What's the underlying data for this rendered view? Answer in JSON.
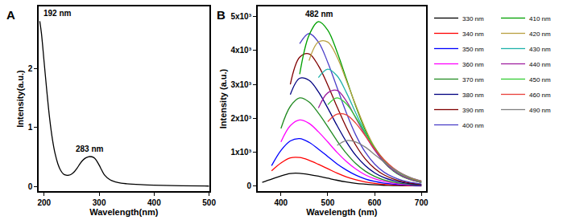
{
  "chart_data": [
    {
      "type": "line",
      "title": "A",
      "x_label": "Wavelength(nm)",
      "y_label": "Intensity(a.u.)",
      "x": [
        192,
        195,
        200,
        205,
        210,
        215,
        220,
        225,
        230,
        235,
        240,
        245,
        250,
        255,
        260,
        265,
        270,
        275,
        280,
        283,
        290,
        295,
        300,
        305,
        310,
        320,
        330,
        340,
        350,
        375,
        400,
        450,
        500
      ],
      "values": [
        2.8,
        2.6,
        2.1,
        1.6,
        1.15,
        0.8,
        0.55,
        0.38,
        0.27,
        0.21,
        0.19,
        0.19,
        0.21,
        0.25,
        0.31,
        0.38,
        0.44,
        0.48,
        0.5,
        0.505,
        0.49,
        0.44,
        0.36,
        0.27,
        0.19,
        0.11,
        0.075,
        0.055,
        0.045,
        0.03,
        0.02,
        0.01,
        0.005
      ],
      "color": "#000000",
      "xlim": [
        190,
        500
      ],
      "xticks": [
        200,
        300,
        400,
        500
      ],
      "ylim": [
        -0.08,
        3.05
      ],
      "yticks": [
        0,
        1,
        2
      ],
      "grid": false,
      "annotations": [
        {
          "text": "192 nm",
          "x": 192,
          "y": 2.8
        },
        {
          "text": "283 nm",
          "x": 283,
          "y": 0.5
        }
      ]
    },
    {
      "type": "line",
      "title": "B",
      "x_label": "Wavelength (nm)",
      "y_label": "Intensity (a.u.)",
      "x": [
        360,
        380,
        400,
        420,
        440,
        460,
        480,
        500,
        520,
        540,
        560,
        580,
        600,
        620,
        640,
        660,
        680,
        700
      ],
      "series": [
        {
          "name": "330 nm",
          "color": "#000000",
          "values": [
            110,
            200,
            300,
            370,
            375,
            340,
            290,
            230,
            170,
            120,
            80,
            55,
            35,
            22,
            14,
            9,
            6,
            4
          ]
        },
        {
          "name": "340 nm",
          "color": "#ff0000",
          "values": [
            null,
            450,
            680,
            830,
            840,
            760,
            640,
            510,
            380,
            270,
            185,
            120,
            80,
            50,
            32,
            20,
            13,
            8
          ]
        },
        {
          "name": "350 nm",
          "color": "#0000ff",
          "values": [
            null,
            600,
            1050,
            1330,
            1400,
            1290,
            1090,
            870,
            650,
            470,
            320,
            210,
            135,
            85,
            55,
            35,
            22,
            14
          ]
        },
        {
          "name": "360 nm",
          "color": "#ff00ff",
          "values": [
            null,
            null,
            1300,
            1780,
            1950,
            1850,
            1600,
            1300,
            990,
            720,
            500,
            330,
            215,
            135,
            85,
            55,
            35,
            22
          ]
        },
        {
          "name": "370 nm",
          "color": "#228b22",
          "values": [
            null,
            null,
            1700,
            2350,
            2600,
            2480,
            2150,
            1750,
            1330,
            960,
            660,
            440,
            285,
            180,
            115,
            72,
            45,
            28
          ]
        },
        {
          "name": "380 nm",
          "color": "#000080",
          "values": [
            null,
            null,
            null,
            2700,
            3180,
            3120,
            2780,
            2300,
            1780,
            1300,
            900,
            600,
            390,
            250,
            160,
            100,
            62,
            40
          ]
        },
        {
          "name": "390 nm",
          "color": "#800000",
          "values": [
            null,
            null,
            null,
            3000,
            3800,
            3900,
            3550,
            2980,
            2330,
            1720,
            1200,
            800,
            520,
            330,
            210,
            130,
            80,
            50
          ]
        },
        {
          "name": "400 nm",
          "color": "#4b3fc8",
          "values": [
            null,
            null,
            null,
            null,
            4200,
            4500,
            4250,
            3650,
            2900,
            2150,
            1500,
            1000,
            650,
            410,
            260,
            160,
            100,
            62
          ]
        },
        {
          "name": "410 nm",
          "color": "#00a000",
          "values": [
            null,
            null,
            null,
            null,
            3300,
            4450,
            4850,
            4600,
            3950,
            3150,
            2350,
            1650,
            1100,
            700,
            440,
            270,
            170,
            105
          ]
        },
        {
          "name": "420 nm",
          "color": "#b8a040",
          "values": [
            null,
            null,
            null,
            null,
            null,
            3700,
            4250,
            4250,
            3800,
            3100,
            2380,
            1700,
            1150,
            750,
            470,
            290,
            180,
            110
          ]
        },
        {
          "name": "430 nm",
          "color": "#20b2aa",
          "values": [
            null,
            null,
            null,
            null,
            null,
            null,
            3200,
            3450,
            3250,
            2750,
            2150,
            1580,
            1100,
            720,
            460,
            290,
            180,
            110
          ]
        },
        {
          "name": "440 nm",
          "color": "#a020a0",
          "values": [
            null,
            null,
            null,
            null,
            null,
            null,
            2300,
            2750,
            2820,
            2500,
            2000,
            1500,
            1060,
            710,
            460,
            290,
            180,
            115
          ]
        },
        {
          "name": "450 nm",
          "color": "#33cc33",
          "values": [
            null,
            null,
            null,
            null,
            null,
            null,
            null,
            2400,
            2600,
            2420,
            2020,
            1560,
            1130,
            770,
            510,
            330,
            210,
            130
          ]
        },
        {
          "name": "460 nm",
          "color": "#e8403a",
          "values": [
            null,
            null,
            null,
            null,
            null,
            null,
            null,
            1900,
            2120,
            2100,
            1850,
            1480,
            1100,
            780,
            530,
            350,
            225,
            145
          ]
        },
        {
          "name": "490 nm",
          "color": "#808080",
          "values": [
            null,
            null,
            null,
            null,
            null,
            null,
            null,
            null,
            1200,
            1340,
            1300,
            1150,
            930,
            710,
            510,
            350,
            235,
            155
          ]
        }
      ],
      "xlim": [
        350,
        710
      ],
      "xticks": [
        400,
        500,
        600,
        700
      ],
      "ylim": [
        -150,
        5300
      ],
      "yticks": [
        0,
        {
          "value": 1000,
          "label": "1x10³"
        },
        {
          "value": 2000,
          "label": "2x10³"
        },
        {
          "value": 3000,
          "label": "3x10³"
        },
        {
          "value": 4000,
          "label": "4x10³"
        },
        {
          "value": 5000,
          "label": "5x10³"
        }
      ],
      "grid": false,
      "legend": "right",
      "annotations": [
        {
          "text": "482 nm",
          "x": 482,
          "y": 4850
        }
      ]
    }
  ]
}
